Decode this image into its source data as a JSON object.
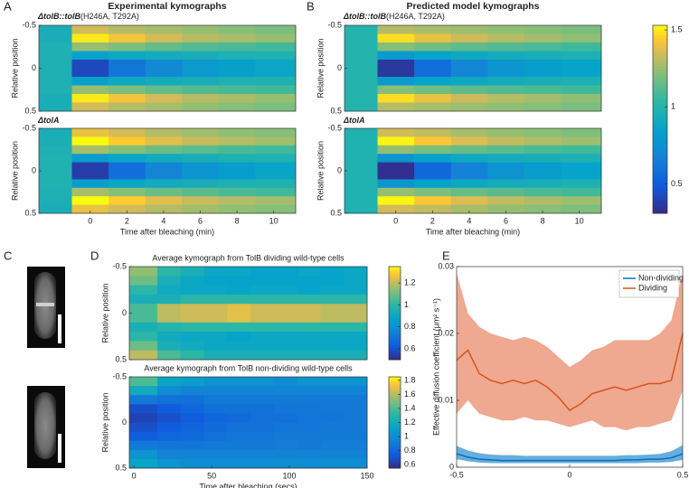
{
  "panel_labels": [
    "A",
    "B",
    "C",
    "D",
    "E"
  ],
  "headers": [
    "Experimental kymographs",
    "Predicted model kymographs"
  ],
  "chart_data": [
    {
      "type": "heatmap",
      "title_italic": "ΔtolB::tolB",
      "title": "(H246A, T292A)",
      "ylabel": "Relative position",
      "x_edges": [
        -2.8,
        -1,
        1,
        3,
        5,
        7,
        9,
        11.2
      ],
      "xlim": [
        -2.8,
        11.2
      ],
      "y_edges": [
        -0.5,
        -0.4,
        -0.3,
        -0.2,
        -0.1,
        0,
        0.1,
        0.2,
        0.3,
        0.4,
        0.5
      ],
      "ylim": [
        -0.5,
        0.5
      ],
      "ydir": "reverse",
      "yticks": [
        -0.5,
        0,
        0.5
      ],
      "clim": [
        0.31,
        1.53
      ],
      "colormap": "parula",
      "values": [
        [
          0.95,
          1.35,
          1.3,
          1.28,
          1.25,
          1.22,
          1.2
        ],
        [
          0.95,
          1.5,
          1.42,
          1.35,
          1.3,
          1.28,
          1.25
        ],
        [
          0.97,
          1.25,
          1.2,
          1.15,
          1.12,
          1.1,
          1.08
        ],
        [
          0.97,
          0.85,
          0.9,
          0.93,
          0.95,
          0.97,
          0.98
        ],
        [
          0.97,
          0.42,
          0.62,
          0.72,
          0.8,
          0.84,
          0.88
        ],
        [
          0.97,
          0.42,
          0.62,
          0.72,
          0.8,
          0.84,
          0.88
        ],
        [
          0.97,
          0.85,
          0.9,
          0.93,
          0.95,
          0.97,
          0.98
        ],
        [
          0.97,
          1.25,
          1.2,
          1.15,
          1.12,
          1.1,
          1.08
        ],
        [
          0.95,
          1.5,
          1.42,
          1.35,
          1.3,
          1.28,
          1.25
        ],
        [
          0.95,
          1.35,
          1.3,
          1.28,
          1.25,
          1.22,
          1.2
        ]
      ]
    },
    {
      "type": "heatmap",
      "title_italic": "ΔtolA",
      "ylabel": "Relative position",
      "xlabel": "Time after bleaching (min)",
      "x_edges": [
        -2.8,
        -1,
        1,
        3,
        5,
        7,
        9,
        11.2
      ],
      "xlim": [
        -2.8,
        11.2
      ],
      "xticks": [
        0,
        2,
        4,
        6,
        8,
        10
      ],
      "y_edges": [
        -0.5,
        -0.4,
        -0.3,
        -0.2,
        -0.1,
        0,
        0.1,
        0.2,
        0.3,
        0.4,
        0.5
      ],
      "ylim": [
        -0.5,
        0.5
      ],
      "ydir": "reverse",
      "yticks": [
        -0.5,
        0,
        0.5
      ],
      "clim": [
        0.31,
        1.53
      ],
      "colormap": "parula",
      "values": [
        [
          0.95,
          1.4,
          1.35,
          1.3,
          1.27,
          1.24,
          1.22
        ],
        [
          0.96,
          1.53,
          1.45,
          1.38,
          1.33,
          1.3,
          1.27
        ],
        [
          0.97,
          1.28,
          1.22,
          1.17,
          1.13,
          1.1,
          1.08
        ],
        [
          0.98,
          0.82,
          0.88,
          0.92,
          0.95,
          0.97,
          0.98
        ],
        [
          0.98,
          0.38,
          0.58,
          0.7,
          0.78,
          0.83,
          0.87
        ],
        [
          0.98,
          0.38,
          0.58,
          0.7,
          0.78,
          0.83,
          0.87
        ],
        [
          0.98,
          0.82,
          0.88,
          0.92,
          0.95,
          0.97,
          0.98
        ],
        [
          0.97,
          1.28,
          1.22,
          1.17,
          1.13,
          1.1,
          1.08
        ],
        [
          0.96,
          1.53,
          1.45,
          1.38,
          1.33,
          1.3,
          1.27
        ],
        [
          0.95,
          1.4,
          1.35,
          1.3,
          1.27,
          1.24,
          1.22
        ]
      ]
    },
    {
      "type": "heatmap",
      "title_italic": "ΔtolB::tolB",
      "title": "(H246A, T292A)",
      "ylabel": "Relative position",
      "x_edges": [
        -2.8,
        -1,
        1,
        3,
        5,
        7,
        9,
        11.2
      ],
      "xlim": [
        -2.8,
        11.2
      ],
      "y_edges": [
        -0.5,
        -0.4,
        -0.3,
        -0.2,
        -0.1,
        0,
        0.1,
        0.2,
        0.3,
        0.4,
        0.5
      ],
      "ylim": [
        -0.5,
        0.5
      ],
      "ydir": "reverse",
      "yticks": [
        -0.5,
        0,
        0.5
      ],
      "clim": [
        0.31,
        1.53
      ],
      "colormap": "parula",
      "values": [
        [
          1.0,
          1.3,
          1.28,
          1.26,
          1.24,
          1.22,
          1.2
        ],
        [
          1.0,
          1.48,
          1.4,
          1.34,
          1.3,
          1.27,
          1.24
        ],
        [
          1.0,
          1.22,
          1.18,
          1.14,
          1.12,
          1.1,
          1.08
        ],
        [
          1.0,
          0.8,
          0.86,
          0.9,
          0.93,
          0.95,
          0.97
        ],
        [
          1.0,
          0.36,
          0.58,
          0.7,
          0.78,
          0.83,
          0.86
        ],
        [
          1.0,
          0.36,
          0.58,
          0.7,
          0.78,
          0.83,
          0.86
        ],
        [
          1.0,
          0.8,
          0.86,
          0.9,
          0.93,
          0.95,
          0.97
        ],
        [
          1.0,
          1.22,
          1.18,
          1.14,
          1.12,
          1.1,
          1.08
        ],
        [
          1.0,
          1.48,
          1.4,
          1.34,
          1.3,
          1.27,
          1.24
        ],
        [
          1.0,
          1.3,
          1.28,
          1.26,
          1.24,
          1.22,
          1.2
        ]
      ]
    },
    {
      "type": "heatmap",
      "title_italic": "ΔtolA",
      "ylabel": "Relative position",
      "xlabel": "Time after bleaching (min)",
      "x_edges": [
        -2.8,
        -1,
        1,
        3,
        5,
        7,
        9,
        11.2
      ],
      "xlim": [
        -2.8,
        11.2
      ],
      "xticks": [
        0,
        2,
        4,
        6,
        8,
        10
      ],
      "y_edges": [
        -0.5,
        -0.4,
        -0.3,
        -0.2,
        -0.1,
        0,
        0.1,
        0.2,
        0.3,
        0.4,
        0.5
      ],
      "ylim": [
        -0.5,
        0.5
      ],
      "ydir": "reverse",
      "yticks": [
        -0.5,
        0,
        0.5
      ],
      "clim": [
        0.31,
        1.53
      ],
      "colormap": "parula",
      "colorbar_ticks": [
        0.5,
        1,
        1.5
      ],
      "values": [
        [
          0.98,
          1.35,
          1.32,
          1.28,
          1.25,
          1.23,
          1.21
        ],
        [
          0.98,
          1.52,
          1.44,
          1.37,
          1.32,
          1.29,
          1.26
        ],
        [
          0.98,
          1.25,
          1.2,
          1.16,
          1.13,
          1.1,
          1.08
        ],
        [
          0.98,
          0.78,
          0.85,
          0.9,
          0.93,
          0.95,
          0.97
        ],
        [
          0.98,
          0.33,
          0.55,
          0.68,
          0.77,
          0.82,
          0.86
        ],
        [
          0.98,
          0.33,
          0.55,
          0.68,
          0.77,
          0.82,
          0.86
        ],
        [
          0.98,
          0.78,
          0.85,
          0.9,
          0.93,
          0.95,
          0.97
        ],
        [
          0.98,
          1.25,
          1.2,
          1.16,
          1.13,
          1.1,
          1.08
        ],
        [
          0.98,
          1.52,
          1.44,
          1.37,
          1.32,
          1.29,
          1.26
        ],
        [
          0.98,
          1.35,
          1.32,
          1.28,
          1.25,
          1.23,
          1.21
        ]
      ]
    },
    {
      "type": "heatmap",
      "title": "Average kymograph from TolB dividing wild-type cells",
      "ylabel": "Relative position",
      "x_edges": [
        -3,
        15,
        30,
        45,
        60,
        75,
        90,
        105,
        120,
        135,
        150
      ],
      "xlim": [
        -3,
        150
      ],
      "y_edges": [
        -0.5,
        -0.4,
        -0.3,
        -0.2,
        -0.1,
        0,
        0.1,
        0.2,
        0.3,
        0.4,
        0.5
      ],
      "ylim": [
        -0.5,
        0.5
      ],
      "ydir": "reverse",
      "yticks": [
        -0.5,
        0,
        0.5
      ],
      "clim": [
        0.5,
        1.35
      ],
      "colormap": "parula",
      "colorbar_ticks": [
        0.6,
        0.8,
        1,
        1.2
      ],
      "values": [
        [
          1.15,
          1.0,
          0.95,
          0.9,
          0.9,
          0.88,
          0.88,
          0.9,
          0.88,
          0.9
        ],
        [
          1.1,
          0.95,
          0.9,
          0.88,
          0.88,
          0.88,
          0.88,
          0.88,
          0.88,
          0.9
        ],
        [
          1.0,
          0.92,
          0.9,
          0.9,
          0.88,
          0.9,
          0.9,
          0.88,
          0.9,
          0.9
        ],
        [
          0.95,
          0.95,
          1.0,
          1.0,
          1.0,
          1.0,
          1.0,
          1.0,
          1.0,
          1.0
        ],
        [
          1.05,
          1.2,
          1.22,
          1.22,
          1.25,
          1.22,
          1.22,
          1.22,
          1.2,
          1.2
        ],
        [
          1.05,
          1.2,
          1.22,
          1.22,
          1.25,
          1.22,
          1.22,
          1.22,
          1.2,
          1.2
        ],
        [
          0.95,
          0.98,
          1.0,
          1.0,
          1.0,
          1.0,
          1.0,
          1.0,
          1.0,
          1.0
        ],
        [
          1.0,
          0.92,
          0.9,
          0.9,
          0.88,
          0.9,
          0.9,
          0.9,
          0.9,
          0.9
        ],
        [
          1.1,
          0.95,
          0.92,
          0.9,
          0.9,
          0.9,
          0.9,
          0.9,
          0.9,
          0.9
        ],
        [
          1.2,
          1.05,
          1.0,
          0.95,
          0.95,
          0.95,
          0.95,
          0.95,
          0.95,
          0.95
        ]
      ]
    },
    {
      "type": "heatmap",
      "title": "Average kymograph from TolB non-dividing wild-type cells",
      "ylabel": "Relative position",
      "xlabel": "Time after bleaching (secs)",
      "x_edges": [
        -3,
        15,
        30,
        45,
        60,
        75,
        90,
        105,
        120,
        135,
        150
      ],
      "xlim": [
        -3,
        150
      ],
      "xticks": [
        0,
        50,
        100,
        150
      ],
      "y_edges": [
        -0.5,
        -0.4,
        -0.3,
        -0.2,
        -0.1,
        0,
        0.1,
        0.2,
        0.3,
        0.4,
        0.5
      ],
      "ylim": [
        -0.5,
        0.5
      ],
      "ydir": "reverse",
      "yticks": [
        -0.5,
        0,
        0.5
      ],
      "clim": [
        0.55,
        1.85
      ],
      "colormap": "parula",
      "colorbar_ticks": [
        0.6,
        0.8,
        1,
        1.2,
        1.4,
        1.6,
        1.8
      ],
      "values": [
        [
          1.4,
          1.15,
          1.1,
          1.05,
          1.05,
          1.05,
          1.0,
          1.05,
          1.05,
          1.05
        ],
        [
          1.2,
          1.0,
          0.95,
          0.95,
          0.95,
          0.95,
          0.95,
          0.95,
          0.95,
          0.95
        ],
        [
          0.9,
          0.85,
          0.85,
          0.9,
          0.9,
          0.9,
          0.9,
          0.9,
          0.9,
          0.9
        ],
        [
          0.7,
          0.75,
          0.8,
          0.85,
          0.85,
          0.85,
          0.88,
          0.88,
          0.9,
          0.9
        ],
        [
          0.65,
          0.7,
          0.75,
          0.8,
          0.82,
          0.85,
          0.85,
          0.88,
          0.88,
          0.9
        ],
        [
          0.7,
          0.75,
          0.78,
          0.82,
          0.85,
          0.85,
          0.88,
          0.88,
          0.9,
          0.9
        ],
        [
          0.75,
          0.8,
          0.82,
          0.85,
          0.88,
          0.88,
          0.9,
          0.9,
          0.9,
          0.9
        ],
        [
          0.9,
          0.88,
          0.88,
          0.9,
          0.9,
          0.9,
          0.92,
          0.9,
          0.92,
          0.92
        ],
        [
          1.05,
          0.95,
          0.95,
          0.95,
          0.95,
          0.95,
          0.95,
          0.95,
          0.95,
          0.95
        ],
        [
          1.15,
          1.05,
          1.0,
          1.0,
          1.0,
          1.0,
          1.0,
          1.0,
          1.0,
          1.0
        ]
      ]
    },
    {
      "type": "line",
      "ylabel": "Effective diffusion coefficient (μm² s⁻¹)",
      "legend": "upper right",
      "xlim": [
        -0.5,
        0.5
      ],
      "xticks": [
        -0.5,
        0,
        0.5
      ],
      "ylim": [
        0,
        0.03
      ],
      "yticks": [
        0,
        0.01,
        0.02,
        0.03
      ],
      "x": [
        -0.5,
        -0.45,
        -0.4,
        -0.35,
        -0.3,
        -0.25,
        -0.2,
        -0.15,
        -0.1,
        -0.05,
        0,
        0.05,
        0.1,
        0.15,
        0.2,
        0.25,
        0.3,
        0.35,
        0.4,
        0.45,
        0.5
      ],
      "series": [
        {
          "name": "Non-dividing",
          "color": "#0072bd",
          "band_color": "#4d9fd6",
          "values": [
            0.002,
            0.0015,
            0.0012,
            0.0011,
            0.001,
            0.001,
            0.001,
            0.001,
            0.001,
            0.001,
            0.001,
            0.001,
            0.001,
            0.001,
            0.001,
            0.0011,
            0.0011,
            0.0012,
            0.0012,
            0.0014,
            0.002
          ],
          "lower": [
            0.0012,
            0.0009,
            0.0007,
            0.0006,
            0.0006,
            0.0006,
            0.0006,
            0.0006,
            0.0006,
            0.0006,
            0.0006,
            0.0006,
            0.0006,
            0.0006,
            0.0006,
            0.0006,
            0.0006,
            0.0007,
            0.0007,
            0.0008,
            0.0011
          ],
          "upper": [
            0.0032,
            0.0025,
            0.0021,
            0.0019,
            0.0018,
            0.0018,
            0.0017,
            0.0017,
            0.0017,
            0.0017,
            0.0017,
            0.0017,
            0.0017,
            0.0017,
            0.0017,
            0.0018,
            0.0018,
            0.0019,
            0.002,
            0.0024,
            0.0033
          ]
        },
        {
          "name": "Dividing",
          "color": "#d95319",
          "band_color": "#eb9a7c",
          "values": [
            0.016,
            0.0175,
            0.014,
            0.013,
            0.0125,
            0.013,
            0.0125,
            0.013,
            0.012,
            0.0105,
            0.0085,
            0.0095,
            0.011,
            0.0115,
            0.012,
            0.0115,
            0.012,
            0.0125,
            0.0125,
            0.013,
            0.02
          ],
          "lower": [
            0.008,
            0.01,
            0.008,
            0.0075,
            0.007,
            0.007,
            0.0075,
            0.007,
            0.007,
            0.0065,
            0.006,
            0.0065,
            0.007,
            0.006,
            0.006,
            0.0055,
            0.006,
            0.006,
            0.0065,
            0.007,
            0.0115
          ],
          "upper": [
            0.029,
            0.023,
            0.021,
            0.02,
            0.0195,
            0.019,
            0.0195,
            0.019,
            0.018,
            0.0165,
            0.015,
            0.016,
            0.0175,
            0.018,
            0.019,
            0.019,
            0.019,
            0.019,
            0.02,
            0.022,
            0.029
          ]
        }
      ]
    }
  ]
}
